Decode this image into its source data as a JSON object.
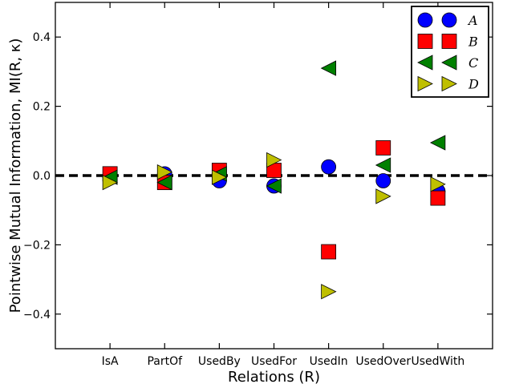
{
  "chart_data": {
    "type": "scatter",
    "xlabel": "Relations (R)",
    "ylabel": "Pointwise Mutual Information, MI(R, κ)",
    "categories": [
      "IsA",
      "PartOf",
      "UsedBy",
      "UsedFor",
      "UsedIn",
      "UsedOver",
      "UsedWith"
    ],
    "ylim": [
      -0.5,
      0.5
    ],
    "yticks": [
      -0.4,
      -0.2,
      0.0,
      0.2,
      0.4
    ],
    "ytick_labels": [
      "−0.4",
      "−0.2",
      "0.0",
      "0.2",
      "0.4"
    ],
    "reference_line": {
      "y": 0.0,
      "style": "dashed",
      "color": "#000000"
    },
    "legend_position": "top-right",
    "series": [
      {
        "name": "A",
        "marker": "circle",
        "color": "#0000ff",
        "values": [
          0.0,
          0.005,
          -0.015,
          -0.03,
          0.025,
          -0.015,
          -0.045
        ]
      },
      {
        "name": "B",
        "marker": "square",
        "color": "#ff0000",
        "values": [
          0.005,
          -0.02,
          0.015,
          0.015,
          -0.22,
          0.08,
          -0.065
        ]
      },
      {
        "name": "C",
        "marker": "triangle-left",
        "color": "#008000",
        "values": [
          -0.005,
          -0.02,
          0.005,
          -0.03,
          0.31,
          0.03,
          0.095
        ]
      },
      {
        "name": "D",
        "marker": "triangle-right",
        "color": "#bfbf00",
        "values": [
          -0.02,
          0.01,
          -0.005,
          0.045,
          -0.335,
          -0.06,
          -0.025
        ]
      }
    ]
  }
}
